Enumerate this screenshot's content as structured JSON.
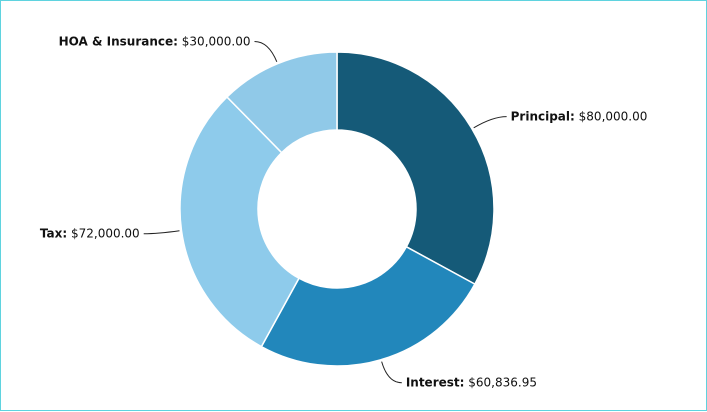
{
  "chart_data": {
    "type": "pie",
    "variant": "donut",
    "slices": [
      {
        "name": "Principal",
        "value": 80000.0,
        "value_label": "$80,000.00",
        "color": "#155a78"
      },
      {
        "name": "Interest",
        "value": 60836.95,
        "value_label": "$60,836.95",
        "color": "#2287bb"
      },
      {
        "name": "Tax",
        "value": 72000.0,
        "value_label": "$72,000.00",
        "color": "#8ecbeb"
      },
      {
        "name": "HOA & Insurance",
        "value": 30000.0,
        "value_label": "$30,000.00",
        "color": "#90c9e8"
      }
    ],
    "start_at": "top",
    "direction": "clockwise",
    "legend": "none",
    "label_separator": ": "
  }
}
